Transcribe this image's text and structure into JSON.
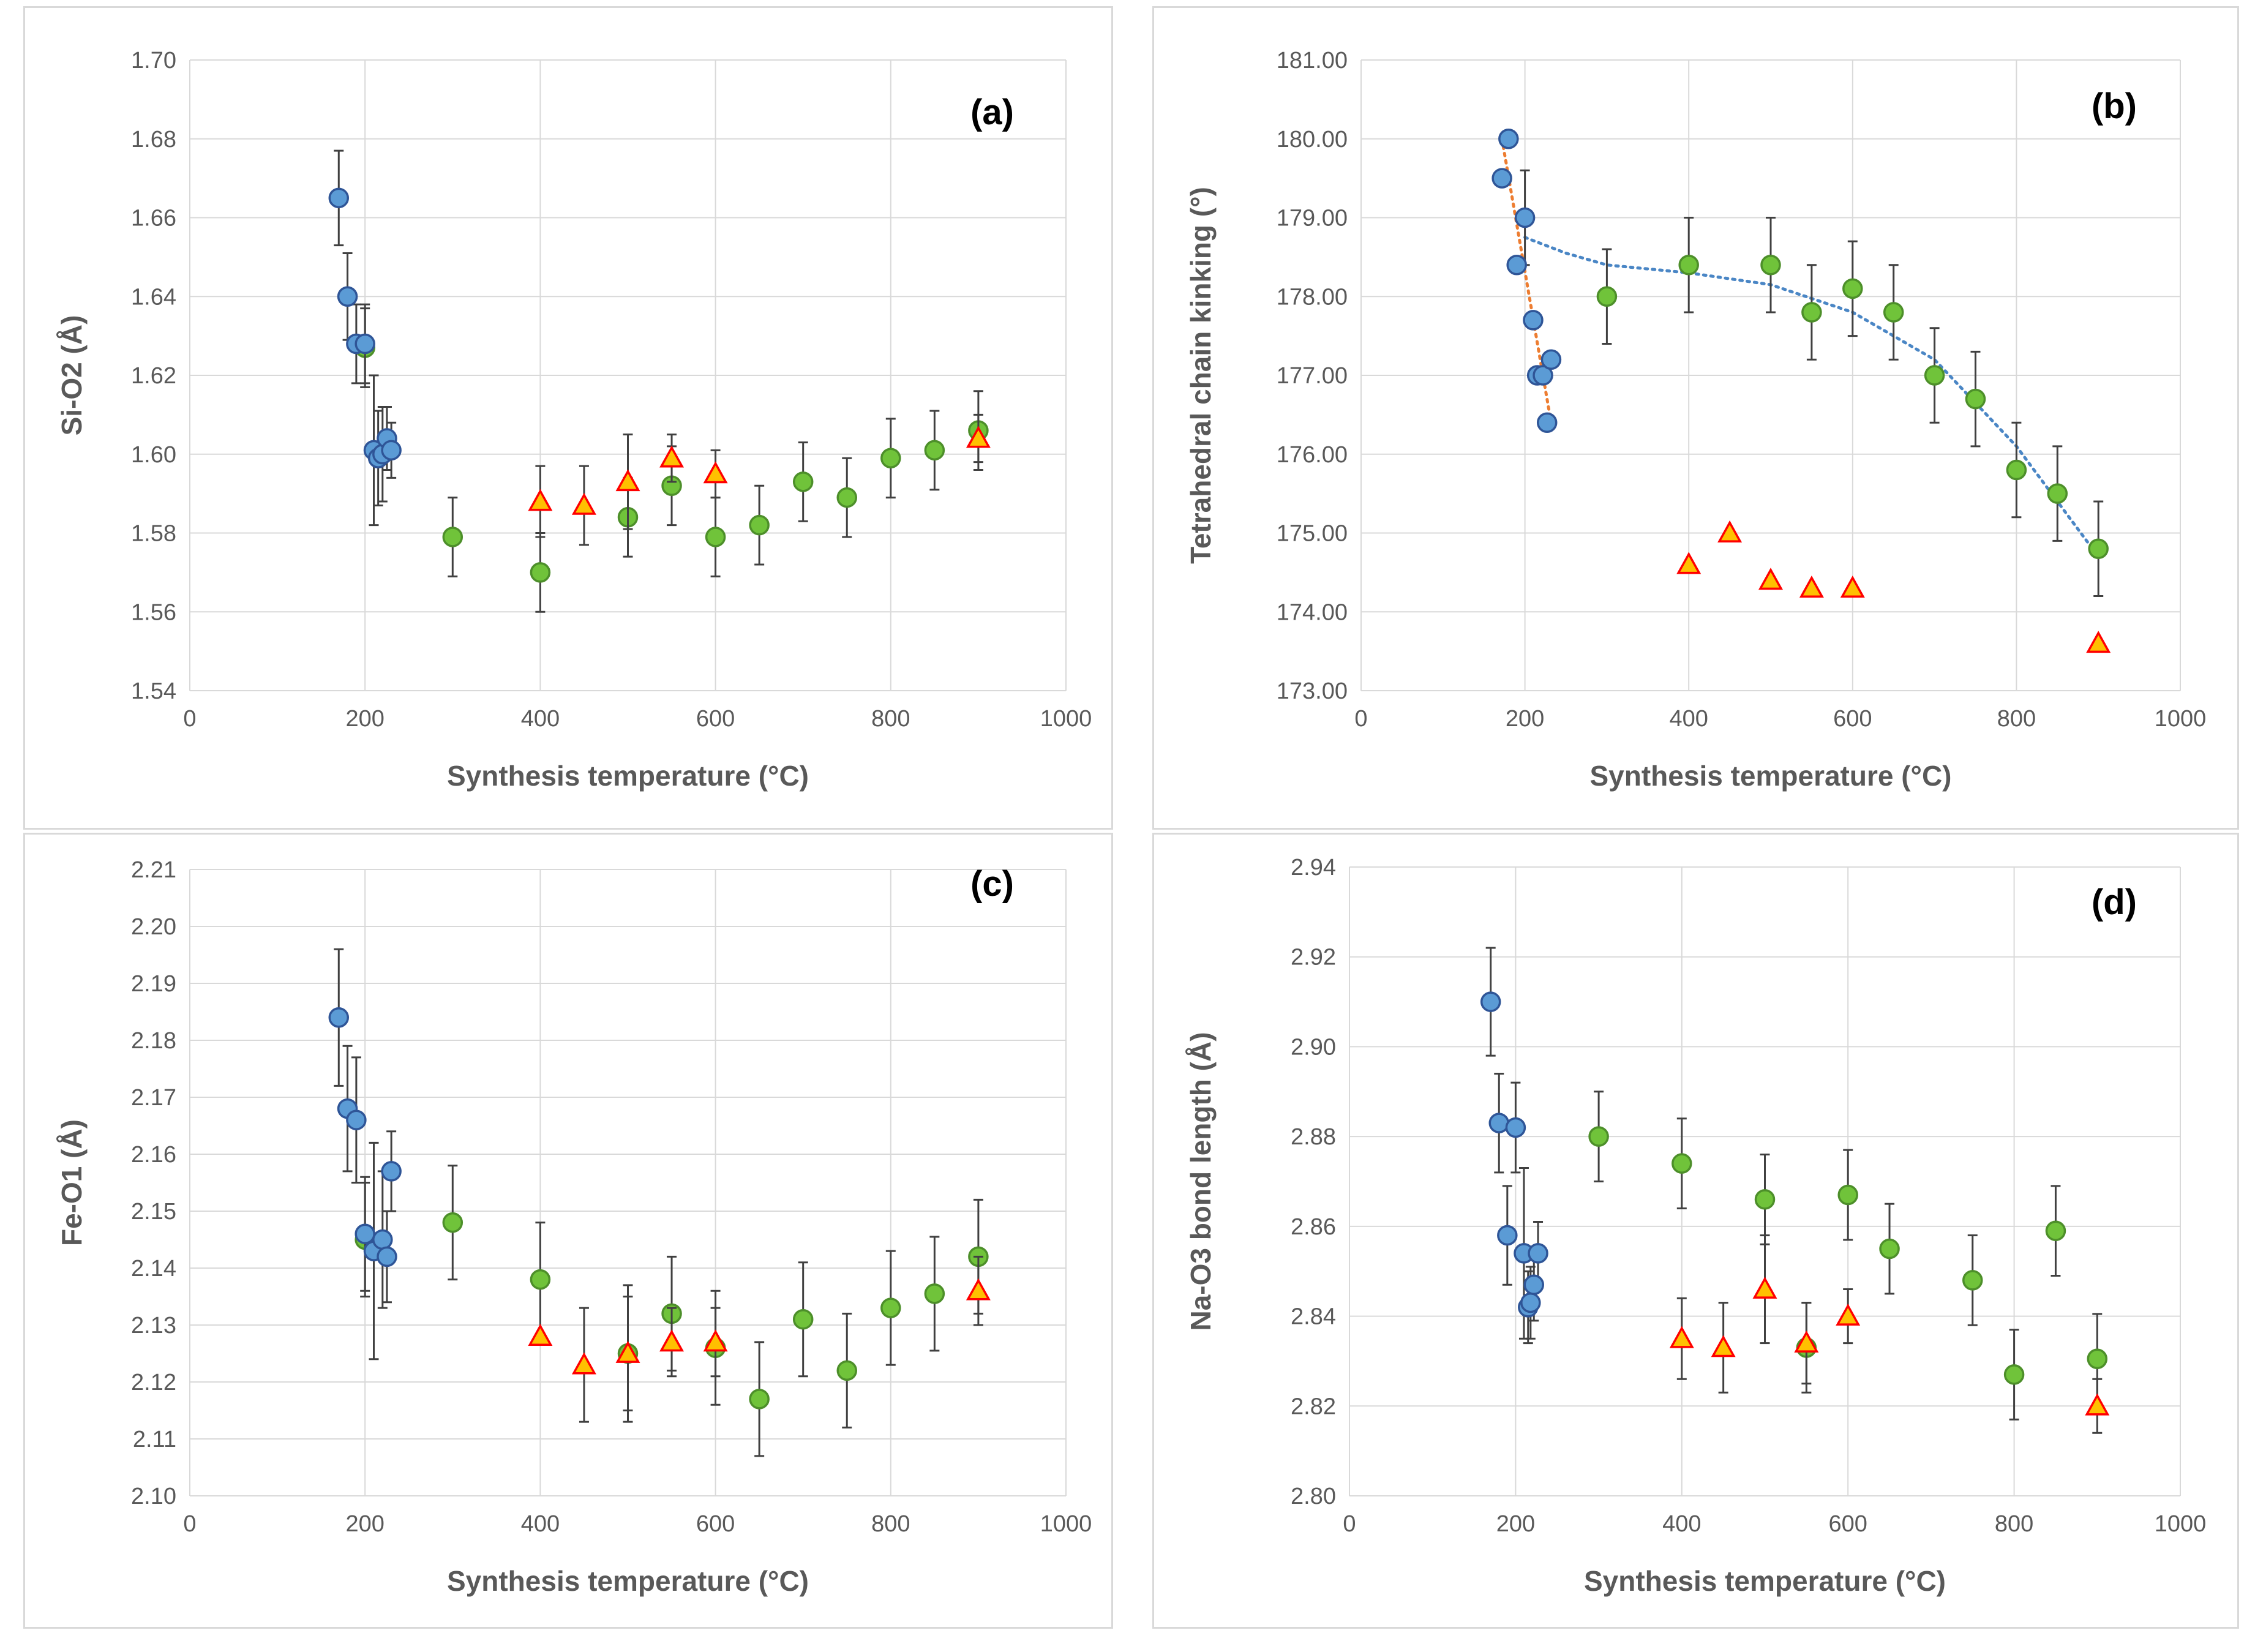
{
  "colors": {
    "blue_fill": "#5b9bd5",
    "blue_stroke": "#2f5597",
    "green_fill": "#70c33a",
    "green_stroke": "#4d8f2a",
    "red_fill": "#ffc000",
    "red_stroke": "#ff0000",
    "grid": "#d9d9d9",
    "errbar": "#404040",
    "trend_blue": "#4a86c5",
    "trend_orange": "#ed7d31"
  },
  "chart_data": [
    {
      "id": "a",
      "type": "scatter",
      "panel_label": "(a)",
      "xlabel": "Synthesis temperature (°C)",
      "ylabel": "Si-O2 (Å)",
      "xlim": [
        0,
        1000
      ],
      "ylim": [
        1.54,
        1.7
      ],
      "xticks": [
        0,
        200,
        400,
        600,
        800,
        1000
      ],
      "yticks": [
        1.54,
        1.56,
        1.58,
        1.6,
        1.62,
        1.64,
        1.66,
        1.68,
        1.7
      ],
      "xtick_labels": [
        "0",
        "200",
        "400",
        "600",
        "800",
        "1000"
      ],
      "ytick_labels": [
        "1.54",
        "1.56",
        "1.58",
        "1.60",
        "1.62",
        "1.64",
        "1.66",
        "1.68",
        "1.70"
      ],
      "series": [
        {
          "name": "green",
          "marker": "circle",
          "points": [
            [
              300,
              1.579,
              0.01
            ],
            [
              400,
              1.57,
              0.01
            ],
            [
              500,
              1.584,
              0.01
            ],
            [
              550,
              1.592,
              0.01
            ],
            [
              600,
              1.579,
              0.01
            ],
            [
              650,
              1.582,
              0.01
            ],
            [
              700,
              1.593,
              0.01
            ],
            [
              750,
              1.589,
              0.01
            ],
            [
              800,
              1.599,
              0.01
            ],
            [
              850,
              1.601,
              0.01
            ],
            [
              900,
              1.606,
              0.01
            ],
            [
              200,
              1.627,
              0.01
            ]
          ]
        },
        {
          "name": "red",
          "marker": "triangle",
          "points": [
            [
              400,
              1.588,
              0.009
            ],
            [
              450,
              1.587,
              0.01
            ],
            [
              500,
              1.593,
              0.012
            ],
            [
              550,
              1.599,
              0.006
            ],
            [
              600,
              1.595,
              0.006
            ],
            [
              900,
              1.604,
              0.006
            ]
          ]
        },
        {
          "name": "blue",
          "marker": "circle",
          "points": [
            [
              170,
              1.665,
              0.012
            ],
            [
              180,
              1.64,
              0.011
            ],
            [
              190,
              1.628,
              0.01
            ],
            [
              200,
              1.628,
              0.01
            ],
            [
              210,
              1.601,
              0.019
            ],
            [
              215,
              1.599,
              0.012
            ],
            [
              220,
              1.6,
              0.012
            ],
            [
              225,
              1.604,
              0.008
            ],
            [
              230,
              1.601,
              0.007
            ]
          ]
        }
      ],
      "trendlines": []
    },
    {
      "id": "b",
      "type": "scatter",
      "panel_label": "(b)",
      "xlabel": "Synthesis temperature (°C)",
      "ylabel": "Tetrahedral chain kinking (°)",
      "xlim": [
        0,
        1000
      ],
      "ylim": [
        173.0,
        181.0
      ],
      "xticks": [
        0,
        200,
        400,
        600,
        800,
        1000
      ],
      "yticks": [
        173,
        174,
        175,
        176,
        177,
        178,
        179,
        180,
        181
      ],
      "xtick_labels": [
        "0",
        "200",
        "400",
        "600",
        "800",
        "1000"
      ],
      "ytick_labels": [
        "173.00",
        "174.00",
        "175.00",
        "176.00",
        "177.00",
        "178.00",
        "179.00",
        "180.00",
        "181.00"
      ],
      "series": [
        {
          "name": "green",
          "marker": "circle",
          "points": [
            [
              300,
              178.0,
              0.6
            ],
            [
              400,
              178.4,
              0.6
            ],
            [
              500,
              178.4,
              0.6
            ],
            [
              550,
              177.8,
              0.6
            ],
            [
              600,
              178.1,
              0.6
            ],
            [
              650,
              177.8,
              0.6
            ],
            [
              700,
              177.0,
              0.6
            ],
            [
              750,
              176.7,
              0.6
            ],
            [
              800,
              175.8,
              0.6
            ],
            [
              850,
              175.5,
              0.6
            ],
            [
              900,
              174.8,
              0.6
            ]
          ]
        },
        {
          "name": "red",
          "marker": "triangle",
          "points": [
            [
              400,
              174.6,
              0
            ],
            [
              450,
              175.0,
              0
            ],
            [
              500,
              174.4,
              0
            ],
            [
              550,
              174.3,
              0
            ],
            [
              600,
              174.3,
              0
            ],
            [
              900,
              173.6,
              0
            ]
          ]
        },
        {
          "name": "blue",
          "marker": "circle",
          "points": [
            [
              172,
              179.5,
              0
            ],
            [
              180,
              180.0,
              0
            ],
            [
              190,
              178.4,
              0
            ],
            [
              200,
              179.0,
              0.6
            ],
            [
              210,
              177.7,
              0
            ],
            [
              215,
              177.0,
              0
            ],
            [
              222,
              177.0,
              0
            ],
            [
              227,
              176.4,
              0
            ],
            [
              232,
              177.2,
              0
            ]
          ]
        }
      ],
      "trendlines": [
        {
          "name": "poly-blue",
          "color": "blue",
          "points": [
            [
              200,
              178.75
            ],
            [
              250,
              178.55
            ],
            [
              300,
              178.4
            ],
            [
              400,
              178.3
            ],
            [
              500,
              178.15
            ],
            [
              600,
              177.8
            ],
            [
              700,
              177.2
            ],
            [
              800,
              176.1
            ],
            [
              900,
              174.7
            ]
          ]
        },
        {
          "name": "linear-orange",
          "color": "orange",
          "points": [
            [
              172,
              180.0
            ],
            [
              232,
              176.4
            ]
          ]
        }
      ]
    },
    {
      "id": "c",
      "type": "scatter",
      "panel_label": "(c)",
      "xlabel": "Synthesis temperature (°C)",
      "ylabel": "Fe-O1 (Å)",
      "xlim": [
        0,
        1000
      ],
      "ylim": [
        2.1,
        2.21
      ],
      "xticks": [
        0,
        200,
        400,
        600,
        800,
        1000
      ],
      "yticks": [
        2.1,
        2.11,
        2.12,
        2.13,
        2.14,
        2.15,
        2.16,
        2.17,
        2.18,
        2.19,
        2.2,
        2.21
      ],
      "xtick_labels": [
        "0",
        "200",
        "400",
        "600",
        "800",
        "1000"
      ],
      "ytick_labels": [
        "2.10",
        "2.11",
        "2.12",
        "2.13",
        "2.14",
        "2.15",
        "2.16",
        "2.17",
        "2.18",
        "2.19",
        "2.20",
        "2.21"
      ],
      "series": [
        {
          "name": "green",
          "marker": "circle",
          "points": [
            [
              200,
              2.145,
              0.01
            ],
            [
              300,
              2.148,
              0.01
            ],
            [
              400,
              2.138,
              0.01
            ],
            [
              500,
              2.125,
              0.01
            ],
            [
              550,
              2.132,
              0.01
            ],
            [
              600,
              2.126,
              0.01
            ],
            [
              650,
              2.117,
              0.01
            ],
            [
              700,
              2.131,
              0.01
            ],
            [
              750,
              2.122,
              0.01
            ],
            [
              800,
              2.133,
              0.01
            ],
            [
              850,
              2.1355,
              0.01
            ],
            [
              900,
              2.142,
              0.01
            ]
          ]
        },
        {
          "name": "red",
          "marker": "triangle",
          "points": [
            [
              400,
              2.128,
              0
            ],
            [
              450,
              2.123,
              0.01
            ],
            [
              500,
              2.125,
              0.012
            ],
            [
              550,
              2.127,
              0.006
            ],
            [
              600,
              2.127,
              0.006
            ],
            [
              900,
              2.136,
              0.006
            ]
          ]
        },
        {
          "name": "blue",
          "marker": "circle",
          "points": [
            [
              170,
              2.184,
              0.012
            ],
            [
              180,
              2.168,
              0.011
            ],
            [
              190,
              2.166,
              0.011
            ],
            [
              200,
              2.146,
              0.01
            ],
            [
              210,
              2.143,
              0.019
            ],
            [
              220,
              2.145,
              0.012
            ],
            [
              225,
              2.142,
              0.008
            ],
            [
              230,
              2.157,
              0.007
            ]
          ]
        }
      ],
      "trendlines": []
    },
    {
      "id": "d",
      "type": "scatter",
      "panel_label": "(d)",
      "xlabel": "Synthesis temperature (°C)",
      "ylabel": "Na-O3 bond length (Å)",
      "xlim": [
        0,
        1000
      ],
      "ylim": [
        2.8,
        2.94
      ],
      "xticks": [
        0,
        200,
        400,
        600,
        800,
        1000
      ],
      "yticks": [
        2.8,
        2.82,
        2.84,
        2.86,
        2.88,
        2.9,
        2.92,
        2.94
      ],
      "xtick_labels": [
        "0",
        "200",
        "400",
        "600",
        "800",
        "1000"
      ],
      "ytick_labels": [
        "2.80",
        "2.82",
        "2.84",
        "2.86",
        "2.88",
        "2.90",
        "2.92",
        "2.94"
      ],
      "series": [
        {
          "name": "green",
          "marker": "circle",
          "points": [
            [
              300,
              2.88,
              0.01
            ],
            [
              400,
              2.874,
              0.01
            ],
            [
              500,
              2.866,
              0.01
            ],
            [
              550,
              2.833,
              0.01
            ],
            [
              600,
              2.867,
              0.01
            ],
            [
              650,
              2.855,
              0.01
            ],
            [
              750,
              2.848,
              0.01
            ],
            [
              800,
              2.827,
              0.01
            ],
            [
              850,
              2.859,
              0.01
            ],
            [
              900,
              2.8305,
              0.01
            ]
          ]
        },
        {
          "name": "red",
          "marker": "triangle",
          "points": [
            [
              400,
              2.835,
              0.009
            ],
            [
              450,
              2.833,
              0.01
            ],
            [
              500,
              2.846,
              0.012
            ],
            [
              550,
              2.834,
              0.009
            ],
            [
              600,
              2.84,
              0.006
            ],
            [
              900,
              2.82,
              0.006
            ]
          ]
        },
        {
          "name": "blue",
          "marker": "circle",
          "points": [
            [
              170,
              2.91,
              0.012
            ],
            [
              180,
              2.883,
              0.011
            ],
            [
              190,
              2.858,
              0.011
            ],
            [
              200,
              2.882,
              0.01
            ],
            [
              210,
              2.854,
              0.019
            ],
            [
              215,
              2.842,
              0.008
            ],
            [
              218,
              2.843,
              0.008
            ],
            [
              222,
              2.847,
              0.008
            ],
            [
              227,
              2.854,
              0.007
            ]
          ]
        }
      ],
      "trendlines": []
    }
  ]
}
